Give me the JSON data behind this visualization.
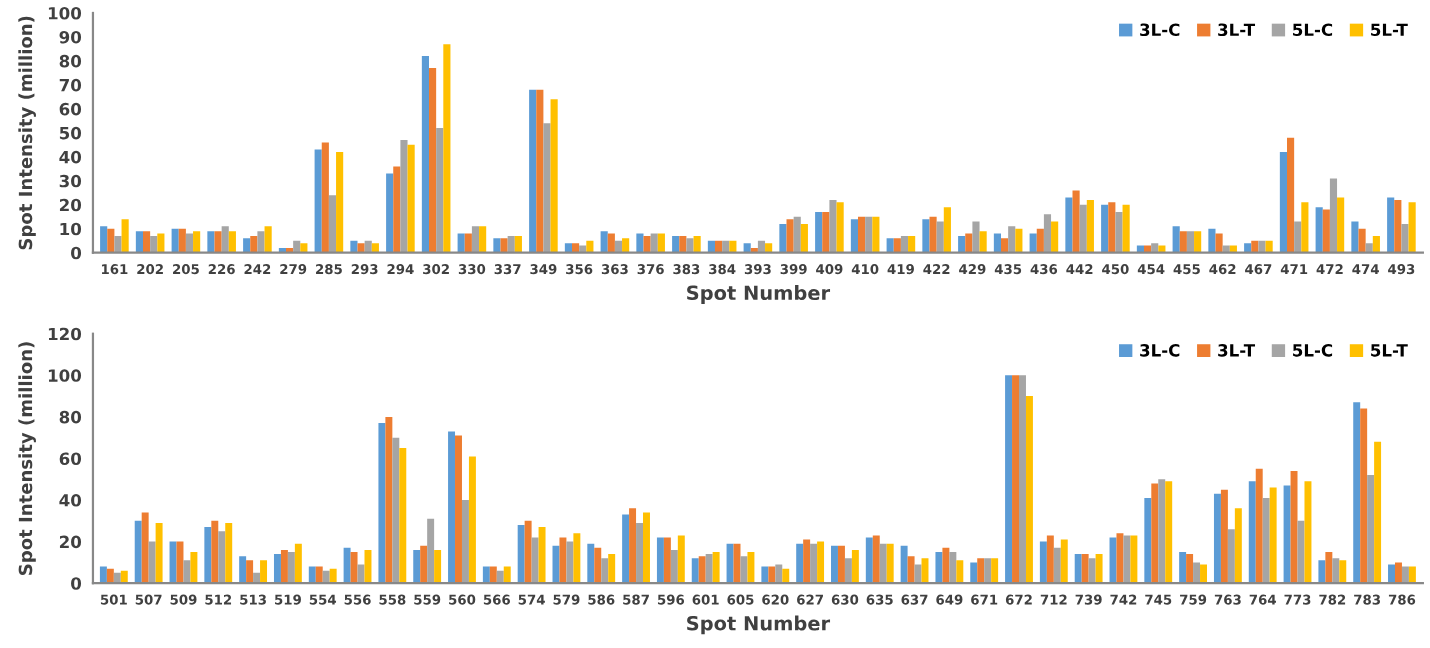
{
  "chart_data": [
    {
      "type": "bar",
      "xlabel": "Spot Number",
      "ylabel": "Spot Intensity (million)",
      "legend": "top right",
      "grid": false,
      "categories": [
        "161",
        "202",
        "205",
        "226",
        "242",
        "279",
        "285",
        "293",
        "294",
        "302",
        "330",
        "337",
        "349",
        "356",
        "363",
        "376",
        "383",
        "384",
        "393",
        "399",
        "409",
        "410",
        "419",
        "422",
        "429",
        "435",
        "436",
        "442",
        "450",
        "454",
        "455",
        "462",
        "467",
        "471",
        "472",
        "474",
        "493"
      ],
      "ylim": [
        0,
        100
      ],
      "yticks": [
        0,
        10,
        20,
        30,
        40,
        50,
        60,
        70,
        80,
        90,
        100
      ],
      "series": [
        {
          "name": "3L-C",
          "color": "#5b9bd5",
          "values": [
            11,
            9,
            10,
            9,
            6,
            2,
            43,
            5,
            33,
            82,
            8,
            6,
            68,
            4,
            9,
            8,
            7,
            5,
            4,
            12,
            17,
            14,
            6,
            14,
            7,
            8,
            8,
            23,
            20,
            3,
            11,
            10,
            4,
            42,
            19,
            13,
            23
          ]
        },
        {
          "name": "3L-T",
          "color": "#ed7d31",
          "values": [
            10,
            9,
            10,
            9,
            7,
            2,
            46,
            4,
            36,
            77,
            8,
            6,
            68,
            4,
            8,
            7,
            7,
            5,
            2,
            14,
            17,
            15,
            6,
            15,
            8,
            6,
            10,
            26,
            21,
            3,
            9,
            8,
            5,
            48,
            18,
            10,
            22
          ]
        },
        {
          "name": "5L-C",
          "color": "#a5a5a5",
          "values": [
            7,
            7,
            8,
            11,
            9,
            5,
            24,
            5,
            47,
            52,
            11,
            7,
            54,
            3,
            5,
            8,
            6,
            5,
            5,
            15,
            22,
            15,
            7,
            13,
            13,
            11,
            16,
            20,
            17,
            4,
            9,
            3,
            5,
            13,
            31,
            4,
            12
          ]
        },
        {
          "name": "5L-T",
          "color": "#ffc000",
          "values": [
            14,
            8,
            9,
            9,
            11,
            4,
            42,
            4,
            45,
            87,
            11,
            7,
            64,
            5,
            6,
            8,
            7,
            5,
            4,
            12,
            21,
            15,
            7,
            19,
            9,
            10,
            13,
            22,
            20,
            3,
            9,
            3,
            5,
            21,
            23,
            7,
            21
          ]
        }
      ]
    },
    {
      "type": "bar",
      "xlabel": "Spot Number",
      "ylabel": "Spot Intensity (million)",
      "legend": "top right",
      "grid": false,
      "categories": [
        "501",
        "507",
        "509",
        "512",
        "513",
        "519",
        "554",
        "556",
        "558",
        "559",
        "560",
        "566",
        "574",
        "579",
        "586",
        "587",
        "596",
        "601",
        "605",
        "620",
        "627",
        "630",
        "635",
        "637",
        "649",
        "671",
        "672",
        "712",
        "739",
        "742",
        "745",
        "759",
        "763",
        "764",
        "773",
        "782",
        "783",
        "786"
      ],
      "ylim": [
        0,
        120
      ],
      "yticks": [
        0,
        20,
        40,
        60,
        80,
        100,
        120
      ],
      "series": [
        {
          "name": "3L-C",
          "color": "#5b9bd5",
          "values": [
            8,
            30,
            20,
            27,
            13,
            14,
            8,
            17,
            77,
            16,
            73,
            8,
            28,
            18,
            19,
            33,
            22,
            12,
            19,
            8,
            19,
            18,
            22,
            18,
            15,
            10,
            100,
            20,
            14,
            22,
            41,
            15,
            43,
            49,
            47,
            11,
            87,
            9
          ]
        },
        {
          "name": "3L-T",
          "color": "#ed7d31",
          "values": [
            7,
            34,
            20,
            30,
            11,
            16,
            8,
            15,
            80,
            18,
            71,
            8,
            30,
            22,
            17,
            36,
            22,
            13,
            19,
            8,
            21,
            18,
            23,
            13,
            17,
            12,
            100,
            23,
            14,
            24,
            48,
            14,
            45,
            55,
            54,
            15,
            84,
            10
          ]
        },
        {
          "name": "5L-C",
          "color": "#a5a5a5",
          "values": [
            5,
            20,
            11,
            25,
            5,
            15,
            6,
            9,
            70,
            31,
            40,
            6,
            22,
            20,
            12,
            29,
            16,
            14,
            13,
            9,
            19,
            12,
            19,
            9,
            15,
            12,
            100,
            17,
            12,
            23,
            50,
            10,
            26,
            41,
            30,
            12,
            52,
            8
          ]
        },
        {
          "name": "5L-T",
          "color": "#ffc000",
          "values": [
            6,
            29,
            15,
            29,
            11,
            19,
            7,
            16,
            65,
            16,
            61,
            8,
            27,
            24,
            14,
            34,
            23,
            15,
            15,
            7,
            20,
            16,
            19,
            12,
            11,
            12,
            90,
            21,
            14,
            23,
            49,
            9,
            36,
            46,
            49,
            11,
            68,
            8
          ]
        }
      ]
    }
  ]
}
